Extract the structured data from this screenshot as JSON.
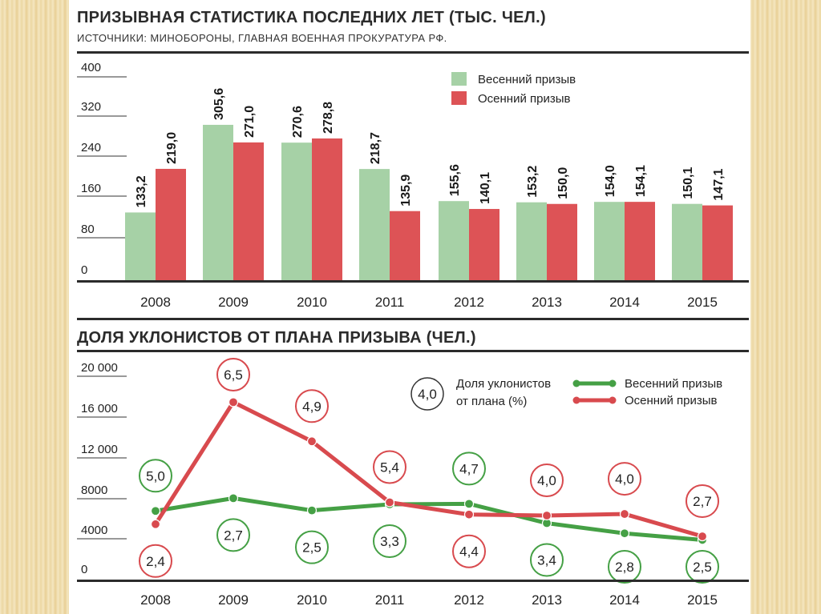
{
  "chart_data": [
    {
      "type": "bar",
      "title": "ПРИЗЫВНАЯ СТАТИСТИКА ПОСЛЕДНИХ ЛЕТ (ТЫС. ЧЕЛ.)",
      "subtitle": "ИСТОЧНИКИ: МИНОБОРОНЫ, ГЛАВНАЯ ВОЕННАЯ ПРОКУРАТУРА РФ.",
      "categories": [
        "2008",
        "2009",
        "2010",
        "2011",
        "2012",
        "2013",
        "2014",
        "2015"
      ],
      "ylim": [
        0,
        400
      ],
      "yticks": [
        "400",
        "320",
        "240",
        "160",
        "80",
        "0"
      ],
      "grid": false,
      "legend_position": "top-right",
      "series": [
        {
          "name": "Весенний призыв",
          "color": "#a6d1a6",
          "values": [
            133.2,
            305.6,
            270.6,
            218.7,
            155.6,
            153.2,
            154.0,
            150.1
          ],
          "labels": [
            "133,2",
            "305,6",
            "270,6",
            "218,7",
            "155,6",
            "153,2",
            "154,0",
            "150,1"
          ]
        },
        {
          "name": "Осенний призыв",
          "color": "#dd5356",
          "values": [
            219.0,
            271.0,
            278.8,
            135.9,
            140.1,
            150.0,
            154.1,
            147.1
          ],
          "labels": [
            "219,0",
            "271,0",
            "278,8",
            "135,9",
            "140,1",
            "150,0",
            "154,1",
            "147,1"
          ]
        }
      ]
    },
    {
      "type": "line",
      "title": "ДОЛЯ УКЛОНИСТОВ ОТ ПЛАНА ПРИЗЫВА (ЧЕЛ.)",
      "categories": [
        "2008",
        "2009",
        "2010",
        "2011",
        "2012",
        "2013",
        "2014",
        "2015"
      ],
      "ylim": [
        0,
        20000
      ],
      "yticks": [
        "20 000",
        "16 000",
        "12 000",
        "8000",
        "4000",
        "0"
      ],
      "grid": false,
      "legend_position": "top-right",
      "legend_note": {
        "sample": "4,0",
        "text": [
          "Доля уклонистов",
          "от плана (%)"
        ]
      },
      "series": [
        {
          "name": "Весенний призыв",
          "color": "#45a045",
          "values": [
            6750,
            8000,
            6800,
            7400,
            7450,
            5550,
            4550,
            3900
          ],
          "shares": [
            "5,0",
            "2,7",
            "2,5",
            "3,3",
            "4,7",
            "3,4",
            "2,8",
            "2,5"
          ]
        },
        {
          "name": "Осенний призыв",
          "color": "#d84a4e",
          "values": [
            5450,
            17450,
            13600,
            7600,
            6400,
            6300,
            6450,
            4250
          ],
          "shares": [
            "2,4",
            "6,5",
            "4,9",
            "5,4",
            "4,4",
            "4,0",
            "4,0",
            "2,7"
          ]
        }
      ]
    }
  ]
}
